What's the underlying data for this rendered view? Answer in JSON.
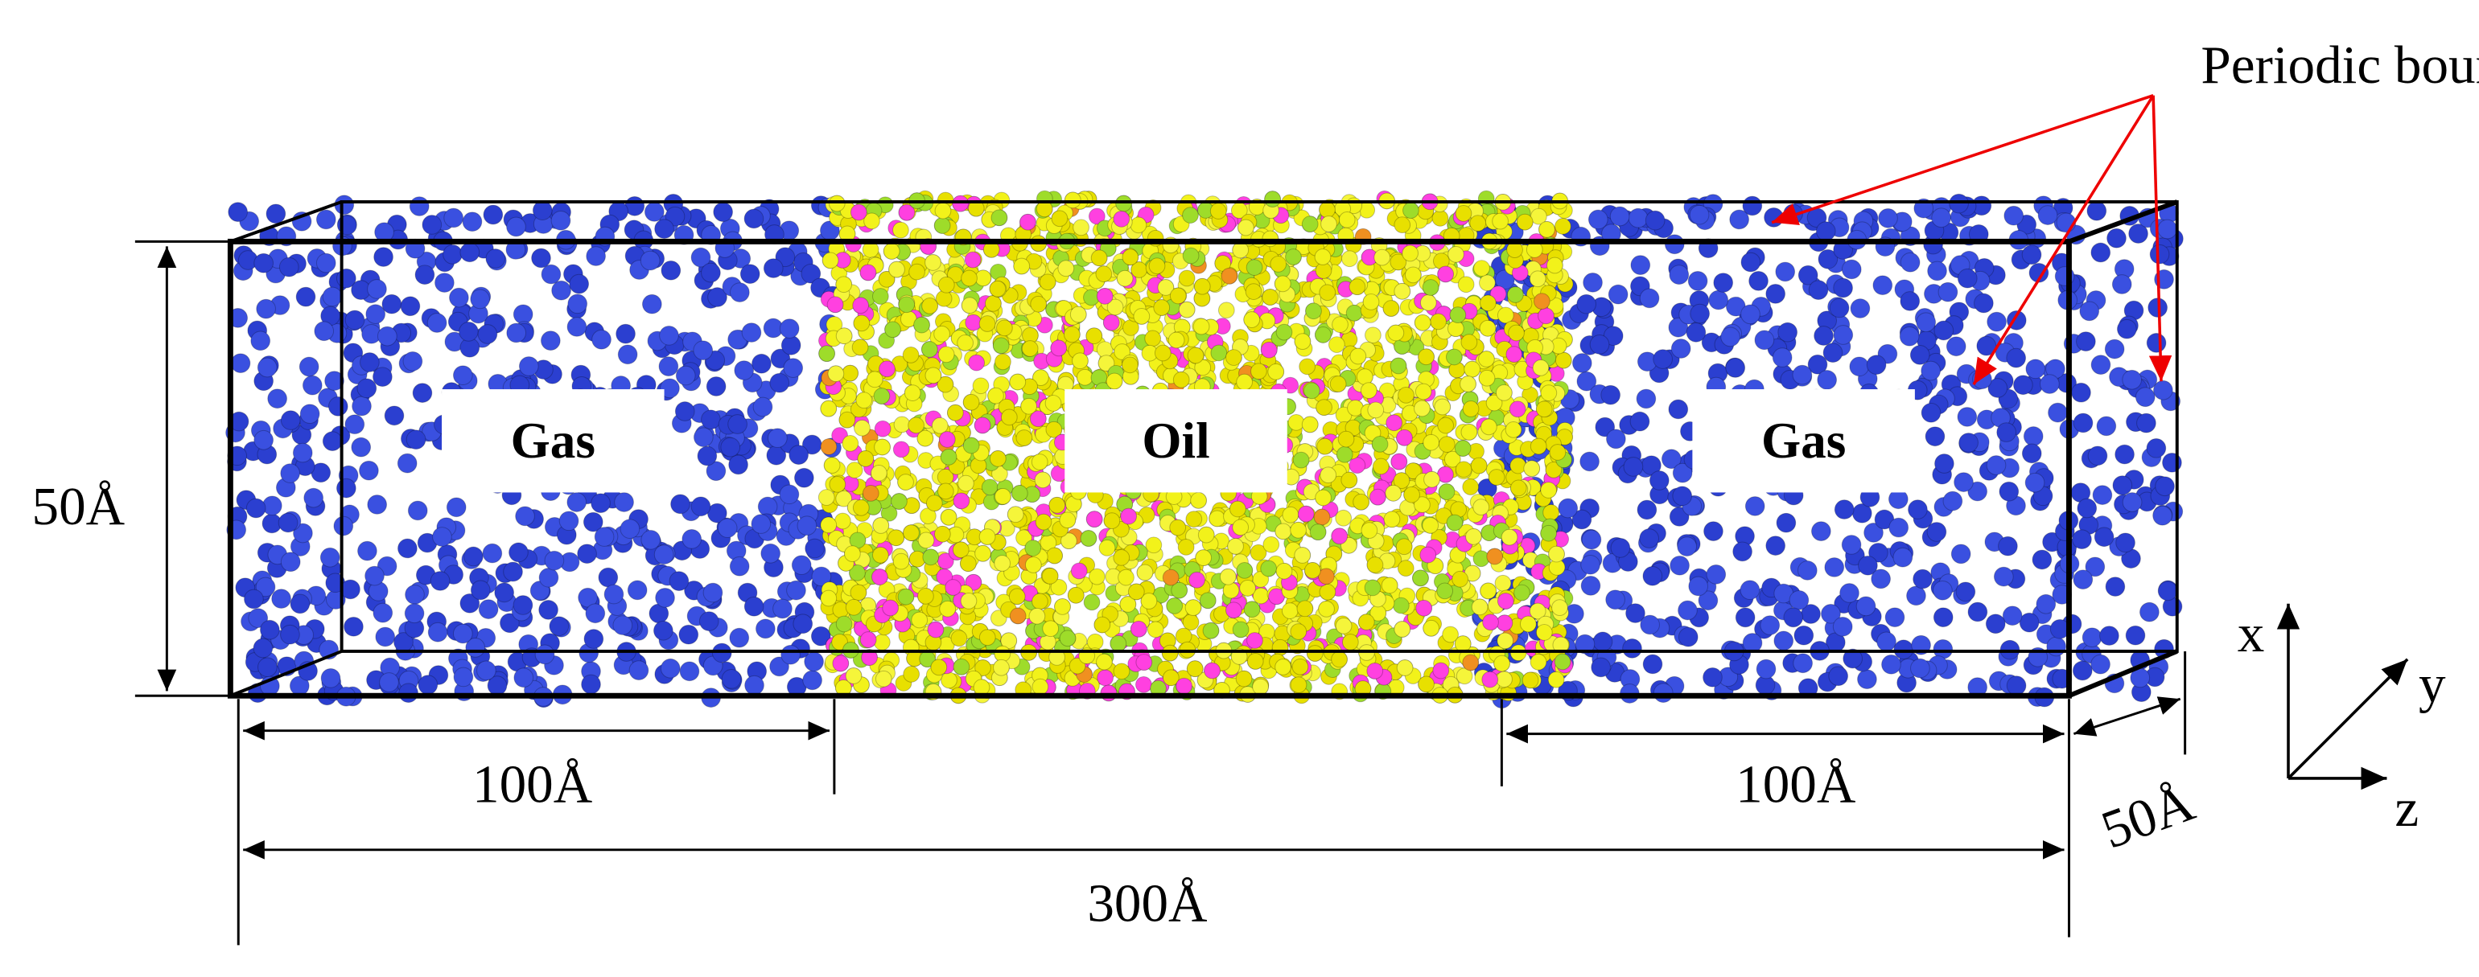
{
  "annotation": "Periodic boundary",
  "regions": [
    {
      "label": "Gas"
    },
    {
      "label": "Oil"
    },
    {
      "label": "Gas"
    }
  ],
  "dimensions": {
    "height": "50Å",
    "left_gas": "100Å",
    "right_gas": "100Å",
    "length": "300Å",
    "depth": "50Å"
  },
  "axes": {
    "x": "x",
    "y": "y",
    "z": "z"
  }
}
